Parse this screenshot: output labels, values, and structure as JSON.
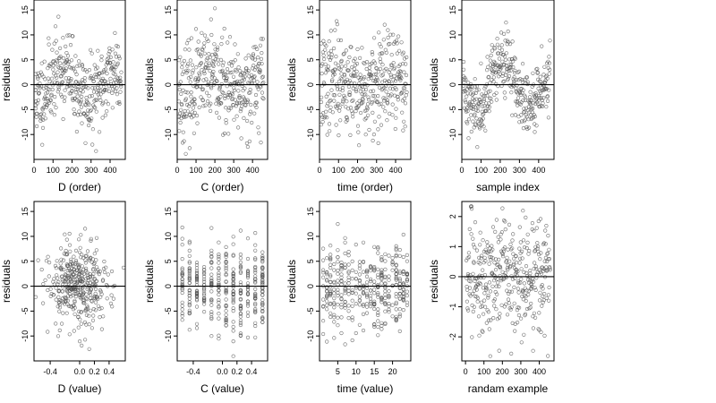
{
  "chart_data": [
    {
      "type": "scatter",
      "xlabel": "D (order)",
      "ylabel": "residuals",
      "xlim": [
        0,
        480
      ],
      "ylim": [
        -15,
        17
      ],
      "xticks": [
        0,
        100,
        200,
        300,
        400
      ],
      "yticks": [
        -10,
        -5,
        0,
        5,
        10,
        15
      ],
      "ref_line": 0,
      "pattern": {
        "kind": "order",
        "amp": 3.0,
        "noise": 4.0,
        "n": 380,
        "seed": 11
      }
    },
    {
      "type": "scatter",
      "xlabel": "C (order)",
      "ylabel": "residuals",
      "xlim": [
        0,
        480
      ],
      "ylim": [
        -15,
        17
      ],
      "xticks": [
        0,
        100,
        200,
        300,
        400
      ],
      "yticks": [
        -10,
        -5,
        0,
        5,
        10,
        15
      ],
      "ref_line": 0,
      "pattern": {
        "kind": "order",
        "amp": 1.8,
        "noise": 4.5,
        "n": 380,
        "seed": 23
      }
    },
    {
      "type": "scatter",
      "xlabel": "time (order)",
      "ylabel": "residuals",
      "xlim": [
        0,
        480
      ],
      "ylim": [
        -15,
        17
      ],
      "xticks": [
        0,
        100,
        200,
        300,
        400
      ],
      "yticks": [
        -10,
        -5,
        0,
        5,
        10,
        15
      ],
      "ref_line": 0,
      "pattern": {
        "kind": "order",
        "amp": 1.2,
        "noise": 4.8,
        "n": 380,
        "seed": 37
      }
    },
    {
      "type": "scatter",
      "xlabel": "sample index",
      "ylabel": "residuals",
      "xlim": [
        0,
        480
      ],
      "ylim": [
        -15,
        17
      ],
      "xticks": [
        0,
        100,
        200,
        300,
        400
      ],
      "yticks": [
        -10,
        -5,
        0,
        5,
        10,
        15
      ],
      "ref_line": 0,
      "pattern": {
        "kind": "order",
        "amp": 4.5,
        "noise": 3.2,
        "n": 380,
        "seed": 41
      }
    },
    {
      "type": "scatter",
      "xlabel": "D (value)",
      "ylabel": "residuals",
      "xlim": [
        -0.62,
        0.62
      ],
      "ylim": [
        -15,
        17
      ],
      "xticks": [
        -0.4,
        0.0,
        0.2,
        0.4
      ],
      "xtick_labels": [
        "-0.4",
        "0.0",
        "0.2",
        "0.4"
      ],
      "yticks": [
        -10,
        -5,
        0,
        5,
        10,
        15
      ],
      "ref_line": 0,
      "pattern": {
        "kind": "spread",
        "center": 0.0,
        "width": 0.5,
        "noise": 4.2,
        "n": 380,
        "seed": 53
      }
    },
    {
      "type": "scatter",
      "xlabel": "C (value)",
      "ylabel": "residuals",
      "xlim": [
        -0.62,
        0.62
      ],
      "ylim": [
        -15,
        17
      ],
      "xticks": [
        -0.4,
        0.0,
        0.2,
        0.4
      ],
      "xtick_labels": [
        "-0.4",
        "0.0",
        "0.2",
        "0.4"
      ],
      "yticks": [
        -10,
        -5,
        0,
        5,
        10,
        15
      ],
      "ref_line": 0,
      "pattern": {
        "kind": "columns",
        "columns": [
          -0.55,
          -0.45,
          -0.35,
          -0.25,
          -0.15,
          -0.05,
          0.05,
          0.15,
          0.25,
          0.35,
          0.45,
          0.55
        ],
        "noise": 4.5,
        "n": 380,
        "seed": 61
      }
    },
    {
      "type": "scatter",
      "xlabel": "time (value)",
      "ylabel": "residuals",
      "xlim": [
        0,
        25
      ],
      "ylim": [
        -15,
        17
      ],
      "xticks": [
        5,
        10,
        15,
        20
      ],
      "yticks": [
        -10,
        -5,
        0,
        5,
        10,
        15
      ],
      "ref_line": 0,
      "pattern": {
        "kind": "columns",
        "columns": [
          1,
          2,
          3,
          4,
          5,
          6,
          7,
          8,
          9,
          10,
          11,
          12,
          13,
          14,
          15,
          16,
          17,
          18,
          19,
          20,
          21,
          22,
          23,
          24
        ],
        "noise": 4.3,
        "n": 380,
        "seed": 71
      }
    },
    {
      "type": "scatter",
      "xlabel": "randam example",
      "ylabel": "residuals",
      "xlim": [
        -20,
        480
      ],
      "ylim": [
        -2.8,
        2.5
      ],
      "xticks": [
        0,
        100,
        200,
        300,
        400
      ],
      "yticks": [
        -2,
        -1,
        0,
        1,
        2
      ],
      "ref_line": 0,
      "pattern": {
        "kind": "order",
        "amp": 0.0,
        "noise": 0.95,
        "n": 380,
        "seed": 83
      }
    }
  ]
}
